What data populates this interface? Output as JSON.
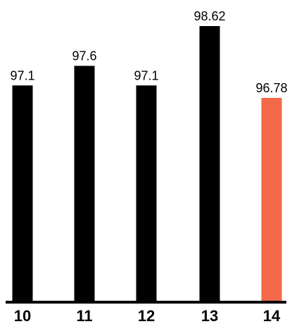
{
  "chart_data": {
    "type": "bar",
    "categories": [
      "10",
      "11",
      "12",
      "13",
      "14"
    ],
    "values": [
      97.1,
      97.6,
      97.1,
      98.62,
      96.78
    ],
    "value_labels": [
      "97.1",
      "97.6",
      "97.1",
      "98.62",
      "96.78"
    ],
    "colors": [
      "#000000",
      "#000000",
      "#000000",
      "#000000",
      "#f26849"
    ],
    "axis_color": "#000000",
    "grid": false,
    "legend": "none"
  }
}
